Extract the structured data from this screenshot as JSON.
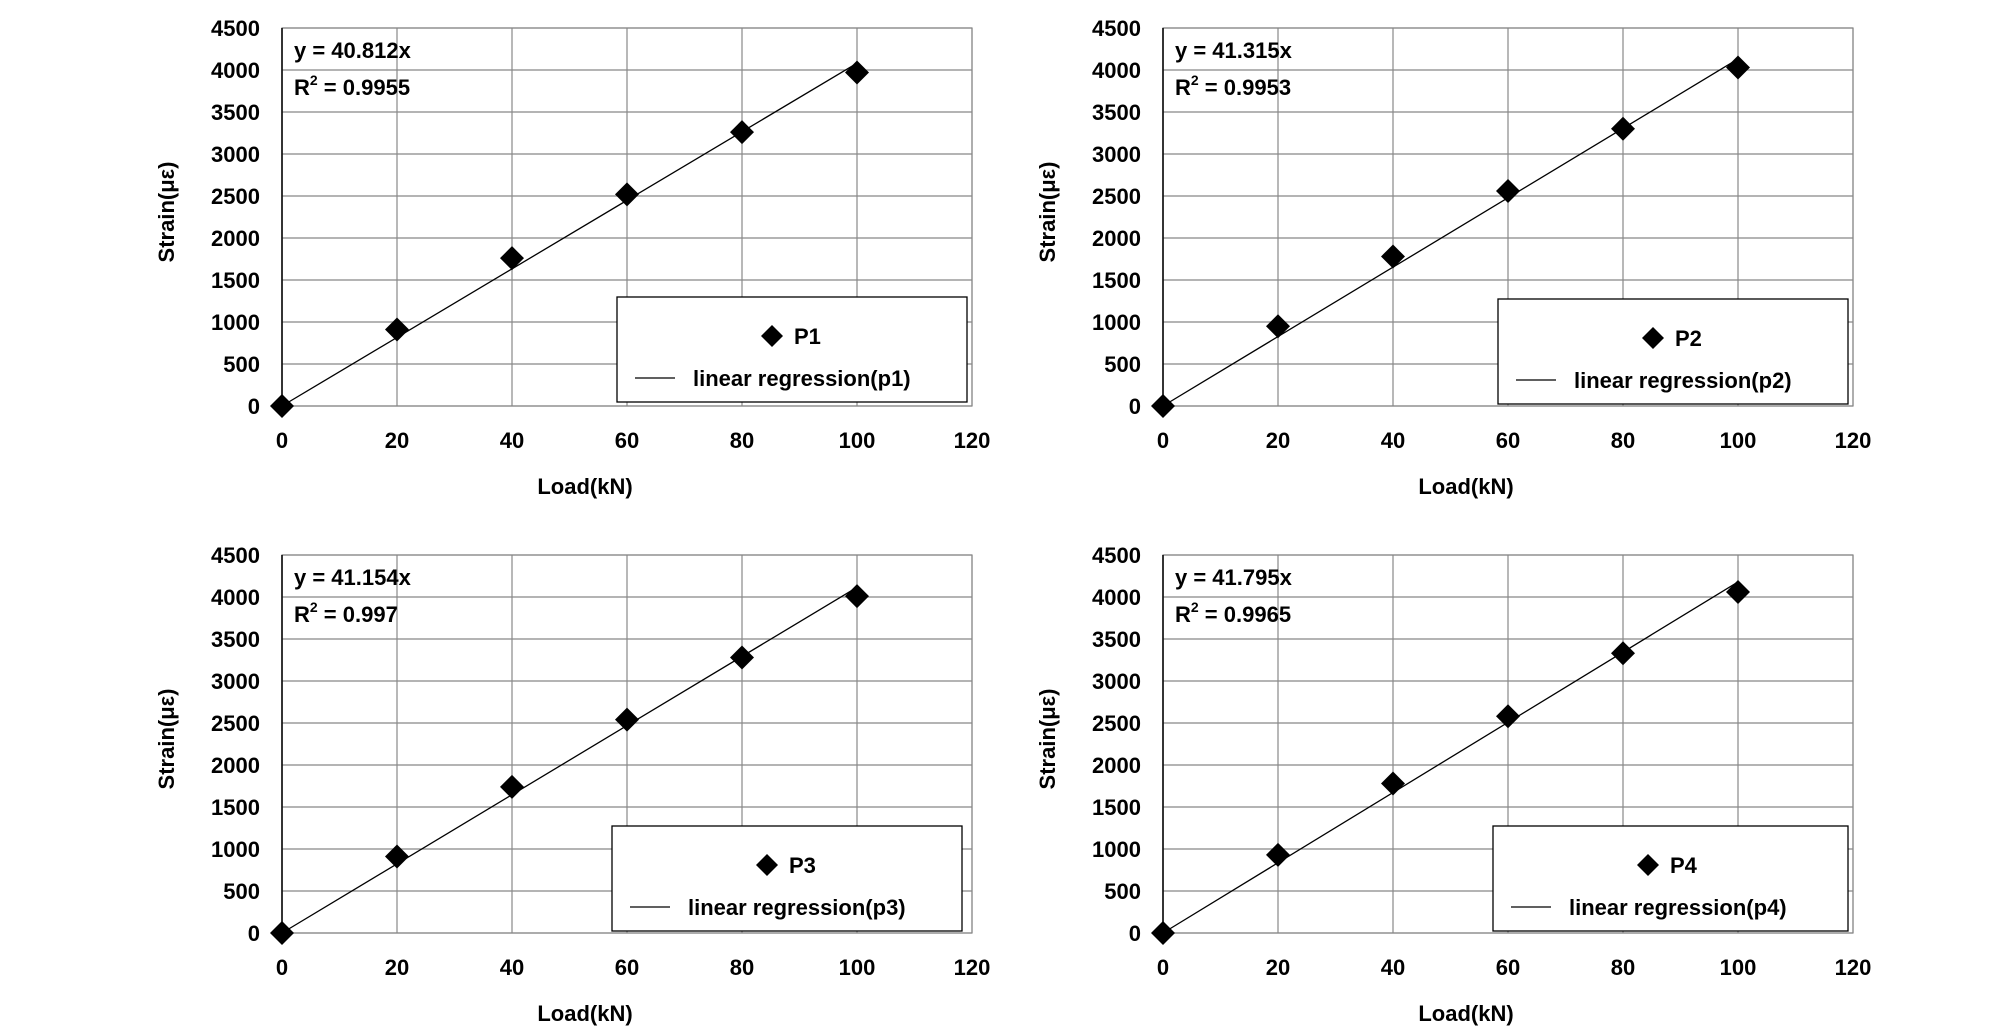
{
  "chart_data": [
    {
      "type": "scatter",
      "xlabel": "Load(kN)",
      "ylabel": "Strain(με)",
      "xlim": [
        0,
        120
      ],
      "ylim": [
        0,
        4500
      ],
      "xticks": [
        0,
        20,
        40,
        60,
        80,
        100,
        120
      ],
      "yticks": [
        0,
        500,
        1000,
        1500,
        2000,
        2500,
        3000,
        3500,
        4000,
        4500
      ],
      "grid": true,
      "legend_position": "bottom-right",
      "equation": "y = 40.812x",
      "r2_prefix": "R",
      "r2_value": " = 0.9955",
      "series": [
        {
          "name": "P1",
          "marker": "diamond",
          "x": [
            0,
            20,
            40,
            60,
            80,
            100
          ],
          "y": [
            0,
            910,
            1760,
            2520,
            3260,
            3970
          ]
        },
        {
          "name": "linear regression(p1)",
          "line": true,
          "slope": 40.812,
          "x": [
            0,
            100
          ]
        }
      ]
    },
    {
      "type": "scatter",
      "xlabel": "Load(kN)",
      "ylabel": "Strain(με)",
      "xlim": [
        0,
        120
      ],
      "ylim": [
        0,
        4500
      ],
      "xticks": [
        0,
        20,
        40,
        60,
        80,
        100,
        120
      ],
      "yticks": [
        0,
        500,
        1000,
        1500,
        2000,
        2500,
        3000,
        3500,
        4000,
        4500
      ],
      "grid": true,
      "legend_position": "bottom-right",
      "equation": "y = 41.315x",
      "r2_prefix": "R",
      "r2_value": " = 0.9953",
      "series": [
        {
          "name": "P2",
          "marker": "diamond",
          "x": [
            0,
            20,
            40,
            60,
            80,
            100
          ],
          "y": [
            0,
            950,
            1780,
            2560,
            3300,
            4030
          ]
        },
        {
          "name": "linear regression(p2)",
          "line": true,
          "slope": 41.315,
          "x": [
            0,
            100
          ]
        }
      ]
    },
    {
      "type": "scatter",
      "xlabel": "Load(kN)",
      "ylabel": "Strain(με)",
      "xlim": [
        0,
        120
      ],
      "ylim": [
        0,
        4500
      ],
      "xticks": [
        0,
        20,
        40,
        60,
        80,
        100,
        120
      ],
      "yticks": [
        0,
        500,
        1000,
        1500,
        2000,
        2500,
        3000,
        3500,
        4000,
        4500
      ],
      "grid": true,
      "legend_position": "bottom-right",
      "equation": "y = 41.154x",
      "r2_prefix": "R",
      "r2_value": " = 0.997",
      "series": [
        {
          "name": "P3",
          "marker": "diamond",
          "x": [
            0,
            20,
            40,
            60,
            80,
            100
          ],
          "y": [
            0,
            910,
            1740,
            2540,
            3280,
            4010
          ]
        },
        {
          "name": "linear regression(p3)",
          "line": true,
          "slope": 41.154,
          "x": [
            0,
            100
          ]
        }
      ]
    },
    {
      "type": "scatter",
      "xlabel": "Load(kN)",
      "ylabel": "Strain(με)",
      "xlim": [
        0,
        120
      ],
      "ylim": [
        0,
        4500
      ],
      "xticks": [
        0,
        20,
        40,
        60,
        80,
        100,
        120
      ],
      "yticks": [
        0,
        500,
        1000,
        1500,
        2000,
        2500,
        3000,
        3500,
        4000,
        4500
      ],
      "grid": true,
      "legend_position": "bottom-right",
      "equation": "y = 41.795x",
      "r2_prefix": "R",
      "r2_value": " = 0.9965",
      "series": [
        {
          "name": "P4",
          "marker": "diamond",
          "x": [
            0,
            20,
            40,
            60,
            80,
            100
          ],
          "y": [
            0,
            930,
            1780,
            2580,
            3330,
            4060
          ]
        },
        {
          "name": "linear regression(p4)",
          "line": true,
          "slope": 41.795,
          "x": [
            0,
            100
          ]
        }
      ]
    }
  ],
  "colors": {
    "marker": "#000000",
    "grid": "#888888",
    "axis": "#000000",
    "text": "#000000"
  }
}
